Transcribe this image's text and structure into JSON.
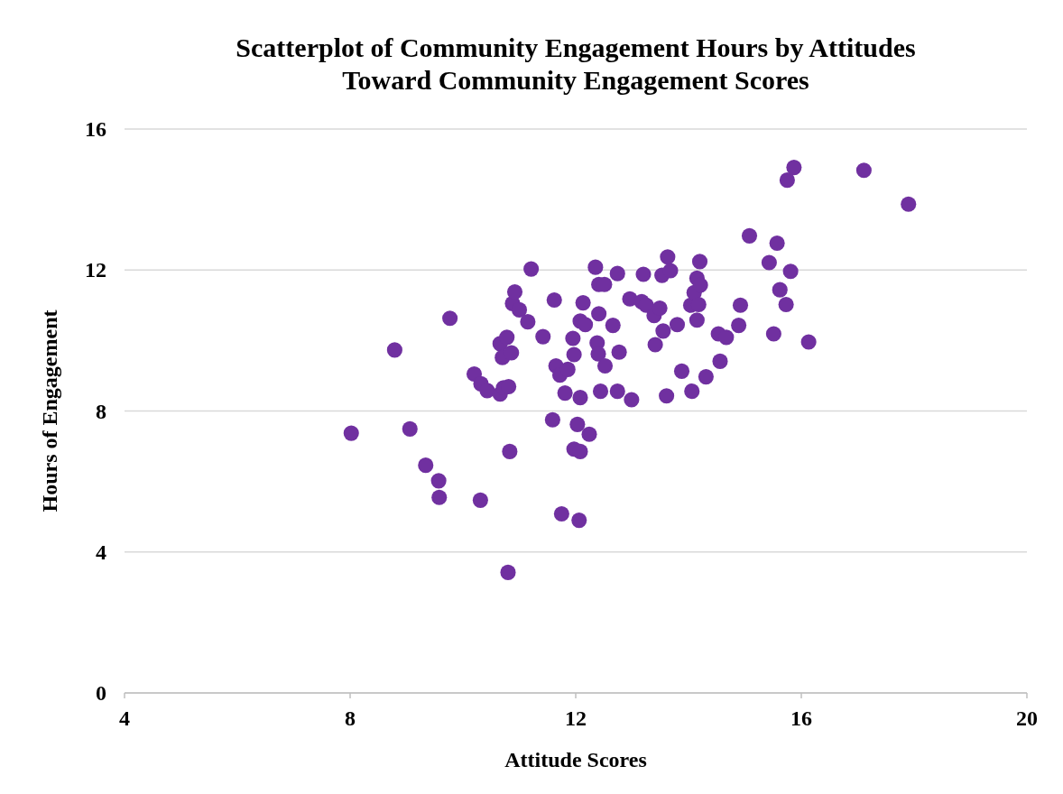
{
  "chart_data": {
    "type": "scatter",
    "title": "Scatterplot of Community Engagement Hours by Attitudes\nToward Community Engagement Scores",
    "xlabel": "Attitude Scores",
    "ylabel": "Hours of Engagement",
    "xlim": [
      4,
      20
    ],
    "xticks": [
      4,
      8,
      12,
      16,
      20
    ],
    "ylim": [
      0,
      16
    ],
    "yticks": [
      0,
      4,
      8,
      12,
      16
    ],
    "grid": "y",
    "marker": "circle",
    "color": "#7030a0",
    "x": [
      8.02,
      8.79,
      9.06,
      9.34,
      9.57,
      9.58,
      9.77,
      10.2,
      10.32,
      10.43,
      10.31,
      10.66,
      10.66,
      10.7,
      10.72,
      10.78,
      10.81,
      10.86,
      10.83,
      10.8,
      10.88,
      10.92,
      11.0,
      11.15,
      11.21,
      11.42,
      11.59,
      11.62,
      11.65,
      11.72,
      11.75,
      11.81,
      11.86,
      11.95,
      11.97,
      11.97,
      12.03,
      12.06,
      12.08,
      12.08,
      12.08,
      12.13,
      12.17,
      12.24,
      12.35,
      12.38,
      12.4,
      12.41,
      12.41,
      12.44,
      12.51,
      12.52,
      12.66,
      12.74,
      12.74,
      12.77,
      12.96,
      12.99,
      13.17,
      13.2,
      13.25,
      13.39,
      13.41,
      13.49,
      13.53,
      13.55,
      13.61,
      13.63,
      13.68,
      13.8,
      13.88,
      14.04,
      14.06,
      14.1,
      14.15,
      14.15,
      14.18,
      14.2,
      14.21,
      14.31,
      14.53,
      14.56,
      14.67,
      14.89,
      14.92,
      15.08,
      15.43,
      15.51,
      15.57,
      15.62,
      15.73,
      15.75,
      15.81,
      15.87,
      16.13,
      17.11,
      17.9
    ],
    "values": [
      7.37,
      9.73,
      7.49,
      6.46,
      6.02,
      5.55,
      10.63,
      9.05,
      8.77,
      8.58,
      5.47,
      9.91,
      8.48,
      9.52,
      8.66,
      10.09,
      8.69,
      9.65,
      6.85,
      3.42,
      11.05,
      11.38,
      10.87,
      10.53,
      12.03,
      10.11,
      7.75,
      11.15,
      9.28,
      9.02,
      5.08,
      8.51,
      9.18,
      10.06,
      9.6,
      6.92,
      7.62,
      4.9,
      8.38,
      6.85,
      10.55,
      11.07,
      10.45,
      7.34,
      12.08,
      9.93,
      9.62,
      10.76,
      11.59,
      8.56,
      11.59,
      9.28,
      10.43,
      11.9,
      8.56,
      9.67,
      11.18,
      8.32,
      11.1,
      11.88,
      11.0,
      10.71,
      9.88,
      10.92,
      11.85,
      10.27,
      8.43,
      12.37,
      11.98,
      10.45,
      9.13,
      11.0,
      8.56,
      11.36,
      11.77,
      10.58,
      11.02,
      12.24,
      11.57,
      8.97,
      10.19,
      9.41,
      10.09,
      10.43,
      11.0,
      12.97,
      12.21,
      10.19,
      12.76,
      11.44,
      11.02,
      14.55,
      11.96,
      14.91,
      9.96,
      14.83,
      13.87
    ]
  }
}
